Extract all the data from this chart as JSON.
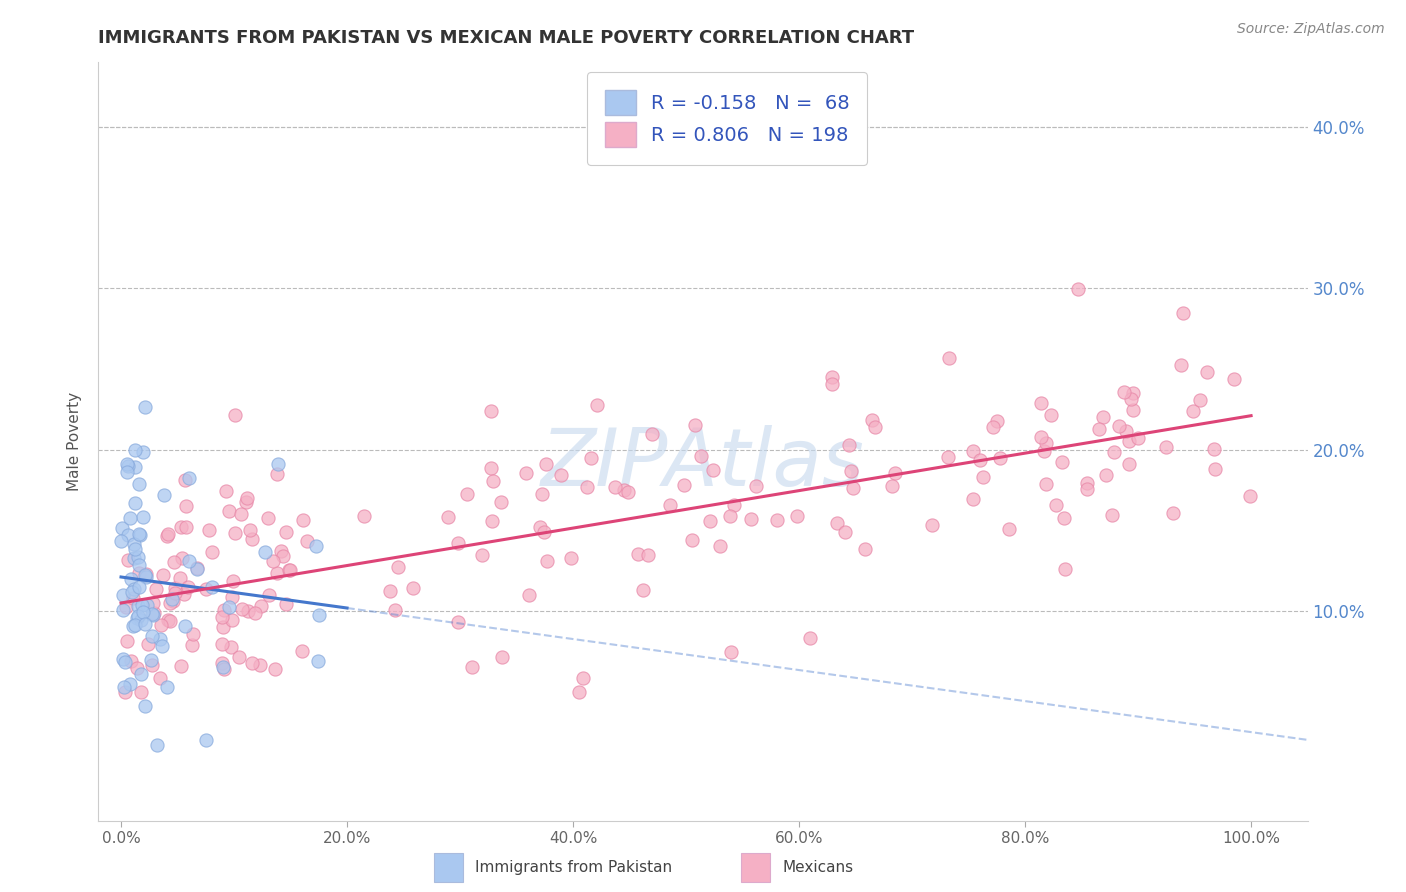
{
  "title": "IMMIGRANTS FROM PAKISTAN VS MEXICAN MALE POVERTY CORRELATION CHART",
  "source": "Source: ZipAtlas.com",
  "xlabel_vals": [
    0,
    20,
    40,
    60,
    80,
    100
  ],
  "ylabel": "Male Poverty",
  "ylabel_vals": [
    10,
    20,
    30,
    40
  ],
  "series1_label": "Immigrants from Pakistan",
  "series1_color": "#aac8f0",
  "series1_edge": "#88aadd",
  "series1_R": -0.158,
  "series1_N": 68,
  "series2_label": "Mexicans",
  "series2_color": "#f5b0c5",
  "series2_edge": "#e888a8",
  "series2_R": 0.806,
  "series2_N": 198,
  "line1_color": "#4477cc",
  "line2_color": "#dd4477",
  "watermark": "ZIPAtlas",
  "watermark_color": "#c5d8ee",
  "legend_color": "#3355bb",
  "background": "#ffffff",
  "grid_color": "#bbbbbb",
  "title_color": "#333333",
  "right_axis_color": "#5588cc",
  "xlim": [
    -2,
    105
  ],
  "ylim": [
    -3,
    44
  ]
}
